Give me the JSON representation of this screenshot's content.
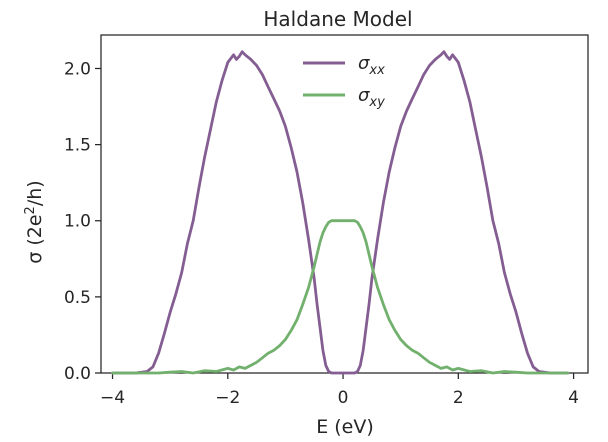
{
  "chart_data": {
    "type": "line",
    "title": "Haldane Model",
    "xlabel": "E (eV)",
    "ylabel_main": "σ (2e",
    "ylabel_sup": "2",
    "ylabel_end": "/h)",
    "xlim": [
      -4.2,
      4.25
    ],
    "ylim": [
      0.0,
      2.22
    ],
    "x_ticks": [
      -4,
      -2,
      0,
      2,
      4
    ],
    "x_tick_labels": [
      "−4",
      "−2",
      "0",
      "2",
      "4"
    ],
    "y_ticks": [
      0.0,
      0.5,
      1.0,
      1.5,
      2.0
    ],
    "y_tick_labels": [
      "0.0",
      "0.5",
      "1.0",
      "1.5",
      "2.0"
    ],
    "grid": false,
    "legend_position": "top-center",
    "series": [
      {
        "name": "σ",
        "name_sub": "xx",
        "color": "#845e92",
        "points": [
          [
            -4.0,
            0.0
          ],
          [
            -3.6,
            0.0
          ],
          [
            -3.4,
            0.01
          ],
          [
            -3.3,
            0.04
          ],
          [
            -3.2,
            0.13
          ],
          [
            -3.1,
            0.26
          ],
          [
            -3.0,
            0.4
          ],
          [
            -2.9,
            0.52
          ],
          [
            -2.8,
            0.66
          ],
          [
            -2.7,
            0.85
          ],
          [
            -2.6,
            1.0
          ],
          [
            -2.5,
            1.22
          ],
          [
            -2.4,
            1.42
          ],
          [
            -2.3,
            1.6
          ],
          [
            -2.2,
            1.78
          ],
          [
            -2.1,
            1.92
          ],
          [
            -2.0,
            2.04
          ],
          [
            -1.9,
            2.09
          ],
          [
            -1.85,
            2.06
          ],
          [
            -1.8,
            2.08
          ],
          [
            -1.75,
            2.11
          ],
          [
            -1.7,
            2.09
          ],
          [
            -1.6,
            2.06
          ],
          [
            -1.5,
            2.02
          ],
          [
            -1.4,
            1.96
          ],
          [
            -1.3,
            1.88
          ],
          [
            -1.2,
            1.8
          ],
          [
            -1.1,
            1.72
          ],
          [
            -1.0,
            1.62
          ],
          [
            -0.9,
            1.48
          ],
          [
            -0.8,
            1.32
          ],
          [
            -0.7,
            1.12
          ],
          [
            -0.6,
            0.88
          ],
          [
            -0.5,
            0.62
          ],
          [
            -0.45,
            0.45
          ],
          [
            -0.4,
            0.3
          ],
          [
            -0.35,
            0.15
          ],
          [
            -0.3,
            0.05
          ],
          [
            -0.25,
            0.01
          ],
          [
            -0.2,
            0.0
          ],
          [
            0.2,
            0.0
          ],
          [
            0.25,
            0.01
          ],
          [
            0.3,
            0.05
          ],
          [
            0.35,
            0.15
          ],
          [
            0.4,
            0.3
          ],
          [
            0.45,
            0.45
          ],
          [
            0.5,
            0.62
          ],
          [
            0.6,
            0.88
          ],
          [
            0.7,
            1.12
          ],
          [
            0.8,
            1.32
          ],
          [
            0.9,
            1.48
          ],
          [
            1.0,
            1.62
          ],
          [
            1.1,
            1.72
          ],
          [
            1.2,
            1.8
          ],
          [
            1.3,
            1.88
          ],
          [
            1.4,
            1.96
          ],
          [
            1.5,
            2.02
          ],
          [
            1.6,
            2.06
          ],
          [
            1.7,
            2.09
          ],
          [
            1.75,
            2.11
          ],
          [
            1.8,
            2.08
          ],
          [
            1.85,
            2.06
          ],
          [
            1.9,
            2.09
          ],
          [
            2.0,
            2.04
          ],
          [
            2.1,
            1.92
          ],
          [
            2.2,
            1.78
          ],
          [
            2.3,
            1.6
          ],
          [
            2.4,
            1.42
          ],
          [
            2.5,
            1.22
          ],
          [
            2.6,
            1.0
          ],
          [
            2.7,
            0.85
          ],
          [
            2.8,
            0.66
          ],
          [
            2.9,
            0.52
          ],
          [
            3.0,
            0.4
          ],
          [
            3.1,
            0.26
          ],
          [
            3.2,
            0.13
          ],
          [
            3.3,
            0.04
          ],
          [
            3.4,
            0.01
          ],
          [
            3.6,
            0.0
          ],
          [
            3.9,
            0.0
          ]
        ]
      },
      {
        "name": "σ",
        "name_sub": "xy",
        "color": "#72b06d",
        "points": [
          [
            -4.0,
            0.0
          ],
          [
            -3.2,
            0.0
          ],
          [
            -3.0,
            0.005
          ],
          [
            -2.8,
            0.01
          ],
          [
            -2.6,
            0.0
          ],
          [
            -2.4,
            0.015
          ],
          [
            -2.2,
            0.01
          ],
          [
            -2.0,
            0.03
          ],
          [
            -1.9,
            0.02
          ],
          [
            -1.8,
            0.04
          ],
          [
            -1.7,
            0.03
          ],
          [
            -1.6,
            0.05
          ],
          [
            -1.5,
            0.07
          ],
          [
            -1.4,
            0.1
          ],
          [
            -1.3,
            0.13
          ],
          [
            -1.2,
            0.15
          ],
          [
            -1.1,
            0.18
          ],
          [
            -1.0,
            0.22
          ],
          [
            -0.9,
            0.28
          ],
          [
            -0.8,
            0.35
          ],
          [
            -0.7,
            0.45
          ],
          [
            -0.6,
            0.56
          ],
          [
            -0.5,
            0.7
          ],
          [
            -0.45,
            0.78
          ],
          [
            -0.4,
            0.86
          ],
          [
            -0.35,
            0.92
          ],
          [
            -0.3,
            0.96
          ],
          [
            -0.25,
            0.99
          ],
          [
            -0.2,
            1.0
          ],
          [
            0.0,
            1.0
          ],
          [
            0.2,
            1.0
          ],
          [
            0.25,
            0.99
          ],
          [
            0.3,
            0.96
          ],
          [
            0.35,
            0.92
          ],
          [
            0.4,
            0.86
          ],
          [
            0.45,
            0.78
          ],
          [
            0.5,
            0.7
          ],
          [
            0.6,
            0.56
          ],
          [
            0.7,
            0.45
          ],
          [
            0.8,
            0.35
          ],
          [
            0.9,
            0.28
          ],
          [
            1.0,
            0.22
          ],
          [
            1.1,
            0.18
          ],
          [
            1.2,
            0.15
          ],
          [
            1.3,
            0.13
          ],
          [
            1.4,
            0.1
          ],
          [
            1.5,
            0.07
          ],
          [
            1.6,
            0.05
          ],
          [
            1.7,
            0.03
          ],
          [
            1.8,
            0.04
          ],
          [
            1.9,
            0.02
          ],
          [
            2.0,
            0.03
          ],
          [
            2.2,
            0.01
          ],
          [
            2.4,
            0.015
          ],
          [
            2.6,
            0.0
          ],
          [
            2.8,
            0.01
          ],
          [
            3.0,
            0.005
          ],
          [
            3.2,
            0.0
          ],
          [
            3.9,
            0.0
          ]
        ]
      }
    ]
  }
}
